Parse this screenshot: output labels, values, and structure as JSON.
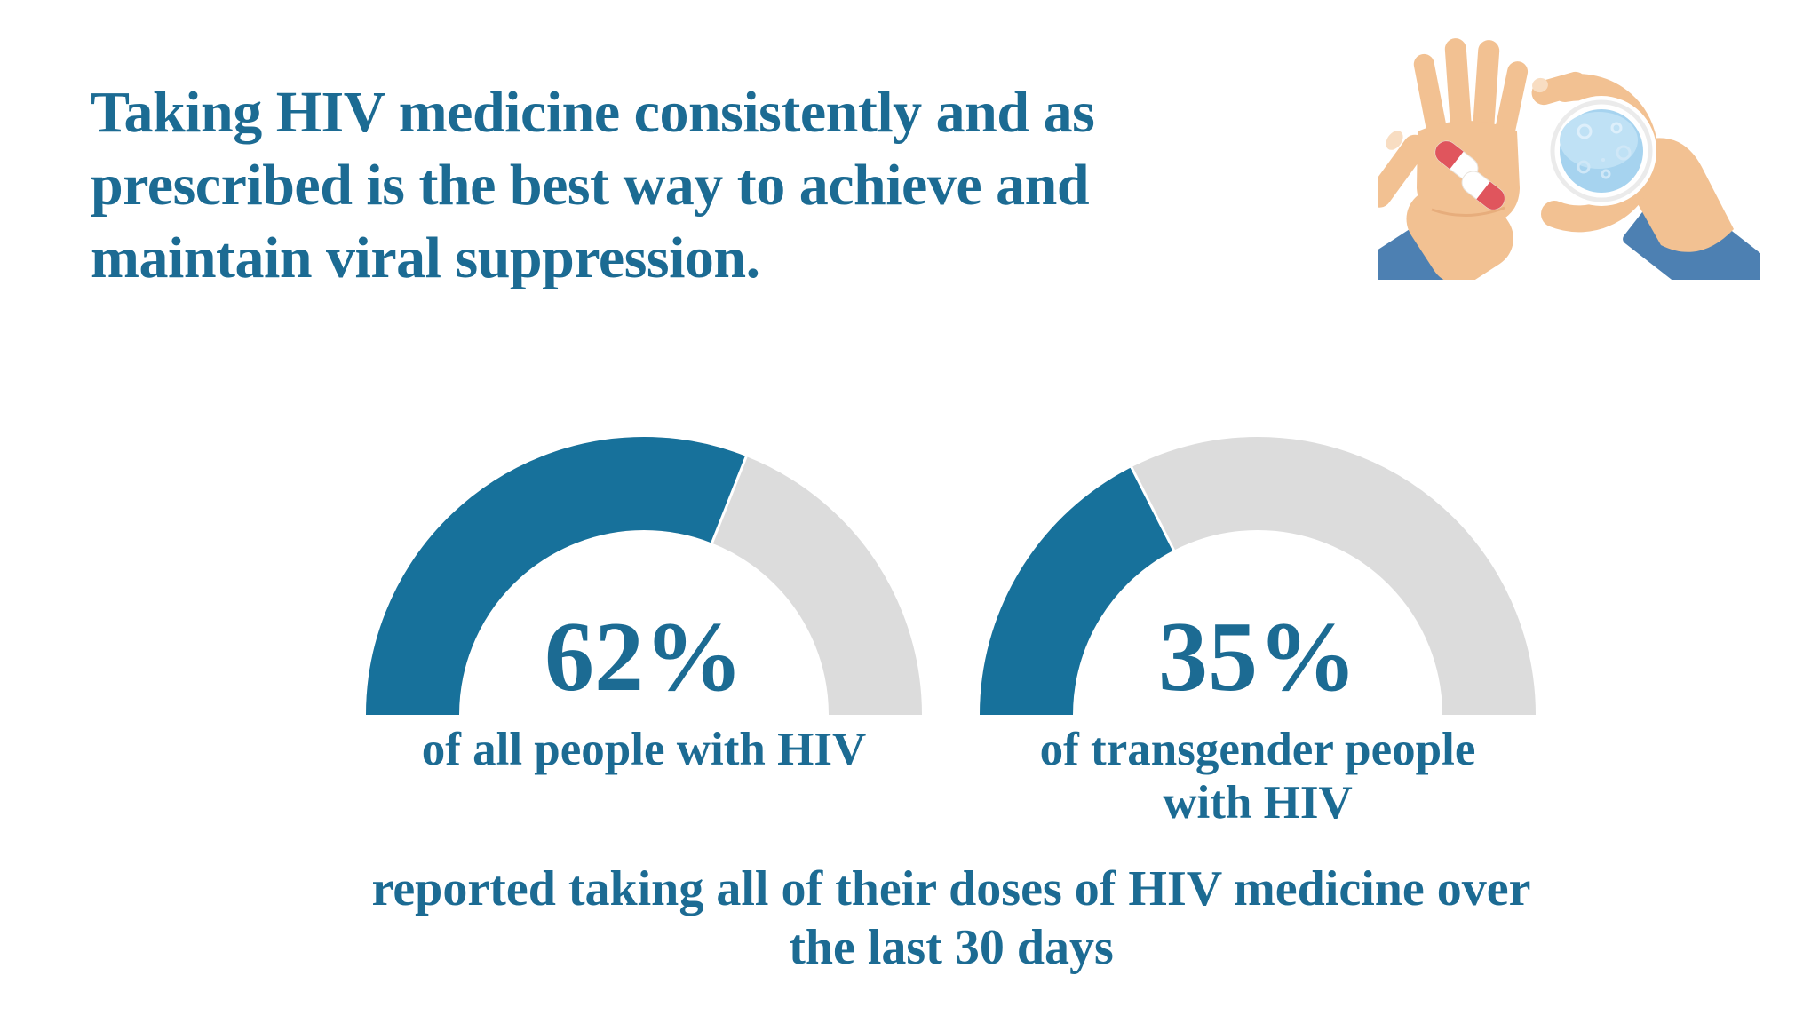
{
  "title": {
    "lines": [
      "Taking HIV medicine consistently and as",
      "prescribed is the best way to achieve and",
      "maintain viral suppression."
    ]
  },
  "gauges": [
    {
      "value_label": "62%",
      "label_lines": [
        "of all people with HIV"
      ]
    },
    {
      "value_label": "35%",
      "label_lines": [
        "of transgender people",
        "with HIV"
      ]
    }
  ],
  "footer": {
    "lines": [
      "reported taking all of their doses of HIV medicine over",
      "the last 30 days"
    ]
  },
  "illustration": {
    "icons": [
      "open-hand-with-pills-icon",
      "hand-holding-glass-of-water-icon"
    ]
  },
  "colors": {
    "text_teal": "#1c6b93",
    "gauge_fill": "#17719b",
    "gauge_track": "#dcdcdc",
    "sleeve_blue": "#4d80b2",
    "skin": "#f2c192",
    "pill_red": "#e0555d",
    "water_blue": "#a6d3ef"
  },
  "chart_data": [
    {
      "type": "pie",
      "subtype": "semicircle_gauge",
      "value": 62,
      "max": 100,
      "center_label": "62%",
      "label": "of all people with HIV",
      "color": "#17719b",
      "track_color": "#dcdcdc"
    },
    {
      "type": "pie",
      "subtype": "semicircle_gauge",
      "value": 35,
      "max": 100,
      "center_label": "35%",
      "label": "of transgender people with HIV",
      "color": "#17719b",
      "track_color": "#dcdcdc"
    }
  ]
}
